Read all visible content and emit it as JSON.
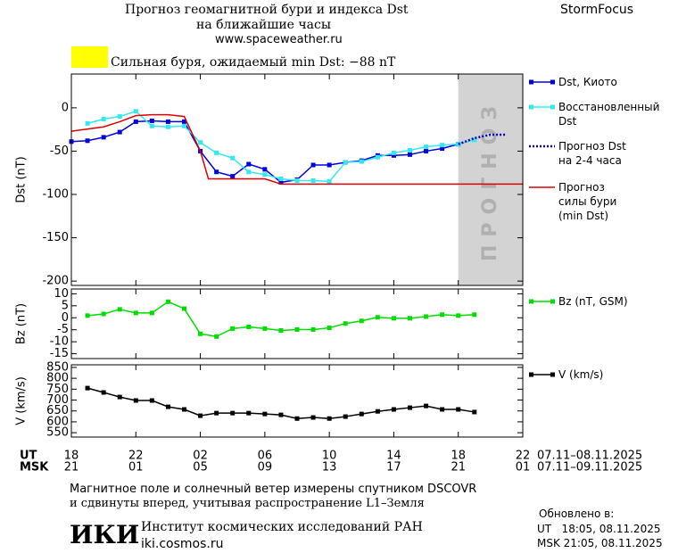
{
  "header": {
    "title": "Прогноз геомагнитной бури и индекса Dst",
    "subtitle": "на ближайшие часы",
    "url": "www.spaceweather.ru",
    "brand": "StormFocus",
    "status_color": "#ffff00",
    "status": "Сильная буря, ожидаемый min Dst: −88 nT"
  },
  "x_axis": {
    "xlim": [
      0,
      28
    ],
    "ut_label": "UT",
    "msk_label": "MSK",
    "ut_ticks": [
      {
        "value": 0,
        "label": "18"
      },
      {
        "value": 4,
        "label": "22"
      },
      {
        "value": 8,
        "label": "02"
      },
      {
        "value": 12,
        "label": "06"
      },
      {
        "value": 16,
        "label": "10"
      },
      {
        "value": 20,
        "label": "14"
      },
      {
        "value": 24,
        "label": "18"
      },
      {
        "value": 28,
        "label": "22"
      }
    ],
    "msk_ticks": [
      {
        "value": 0,
        "label": "21"
      },
      {
        "value": 4,
        "label": "01"
      },
      {
        "value": 8,
        "label": "05"
      },
      {
        "value": 12,
        "label": "09"
      },
      {
        "value": 16,
        "label": "13"
      },
      {
        "value": 20,
        "label": "17"
      },
      {
        "value": 24,
        "label": "21"
      },
      {
        "value": 28,
        "label": "01"
      }
    ],
    "ut_range": "07.11–08.11.2025",
    "msk_range": "07.11–09.11.2025"
  },
  "chart_data": [
    {
      "type": "line",
      "ylabel": "Dst (nT)",
      "ylim": [
        -205,
        39
      ],
      "yticks": [
        0,
        -50,
        -100,
        -150,
        -200
      ],
      "forecast_region": [
        24,
        28
      ],
      "forecast_color": "#d3d3d3",
      "forecast_label": "ПРОГНОЗ",
      "series": [
        {
          "name": "Dst, Киото",
          "color": "#0000dd",
          "marker": true,
          "dash": false,
          "x": [
            0,
            1,
            2,
            3,
            4,
            5,
            6,
            7,
            8,
            9,
            10,
            11,
            12,
            13,
            14,
            15,
            16,
            17,
            18,
            19,
            20,
            21,
            22,
            23,
            24
          ],
          "values": [
            -39,
            -38,
            -34,
            -28,
            -16,
            -15,
            -16,
            -16,
            -50,
            -74,
            -79,
            -65,
            -71,
            -86,
            -83,
            -66,
            -66,
            -63,
            -61,
            -55,
            -55,
            -54,
            -50,
            -47,
            -42
          ]
        },
        {
          "name": "Восстановленный\nDst",
          "color": "#33e8f0",
          "marker": true,
          "dash": false,
          "x": [
            1,
            2,
            3,
            4,
            5,
            6,
            7,
            8,
            9,
            10,
            11,
            12,
            13,
            14,
            15,
            16,
            17,
            18,
            19,
            20,
            21,
            22,
            23,
            24,
            25
          ],
          "values": [
            -18,
            -13,
            -10,
            -4,
            -21,
            -22,
            -21,
            -40,
            -52,
            -58,
            -74,
            -77,
            -82,
            -84,
            -84,
            -85,
            -63,
            -62,
            -57,
            -52,
            -49,
            -45,
            -43,
            -42,
            -37
          ]
        },
        {
          "name": "Прогноз Dst\nна 2-4 часа",
          "color": "#0000cc",
          "marker": false,
          "dash": true,
          "x": [
            24,
            25,
            26,
            27
          ],
          "values": [
            -42,
            -35,
            -31,
            -31
          ]
        },
        {
          "name": "Прогноз\nсилы бури\n(min Dst)",
          "color": "#dd0000",
          "marker": false,
          "dash": false,
          "x": [
            0,
            2,
            3,
            4,
            5,
            6,
            7,
            8,
            8.5,
            12,
            13,
            28
          ],
          "values": [
            -27,
            -22,
            -16,
            -9,
            -8,
            -8,
            -10,
            -50,
            -82,
            -82,
            -88,
            -88
          ]
        }
      ]
    },
    {
      "type": "line",
      "ylabel": "Bz (nT)",
      "ylim": [
        -17,
        12
      ],
      "yticks": [
        10,
        5,
        0,
        -5,
        -10,
        -15
      ],
      "series": [
        {
          "name": "Bz (nT, GSM)",
          "color": "#00dd00",
          "marker": true,
          "dash": false,
          "x": [
            1,
            2,
            3,
            4,
            5,
            6,
            7,
            8,
            9,
            10,
            11,
            12,
            13,
            14,
            15,
            16,
            17,
            18,
            19,
            20,
            21,
            22,
            23,
            24,
            25
          ],
          "values": [
            0.9,
            1.6,
            3.5,
            2,
            2,
            6.7,
            3.8,
            -6.7,
            -7.8,
            -4.5,
            -3.8,
            -4.5,
            -5.3,
            -4.9,
            -4.9,
            -4.2,
            -2.4,
            -1.3,
            0.2,
            -0.2,
            -0.2,
            0.5,
            1.3,
            0.9,
            1.3
          ]
        }
      ]
    },
    {
      "type": "line",
      "ylabel": "V (km/s)",
      "ylim": [
        530,
        862
      ],
      "yticks": [
        550,
        600,
        650,
        700,
        750,
        800,
        850
      ],
      "series": [
        {
          "name": "V (km/s)",
          "color": "#000000",
          "marker": true,
          "dash": false,
          "x": [
            1,
            2,
            3,
            4,
            5,
            6,
            7,
            8,
            9,
            10,
            11,
            12,
            13,
            14,
            15,
            16,
            17,
            18,
            19,
            20,
            21,
            22,
            23,
            24,
            25
          ],
          "values": [
            755,
            735,
            714,
            698,
            698,
            669,
            657,
            628,
            640,
            640,
            640,
            636,
            632,
            615,
            620,
            615,
            624,
            636,
            648,
            657,
            665,
            673,
            657,
            657,
            645
          ]
        }
      ]
    }
  ],
  "footer": {
    "note1": "Магнитное поле и солнечный ветер измерены спутником DSCOVR",
    "note2": "и сдвинуты вперед, учитывая распространение L1–Земля",
    "logo": "ИКИ",
    "institute": "Институт космических исследований РАН",
    "site": "iki.cosmos.ru",
    "updated": "Обновлено в:",
    "updated_ut": "UT   18:05, 08.11.2025",
    "updated_msk": "MSK 21:05, 08.11.2025"
  }
}
